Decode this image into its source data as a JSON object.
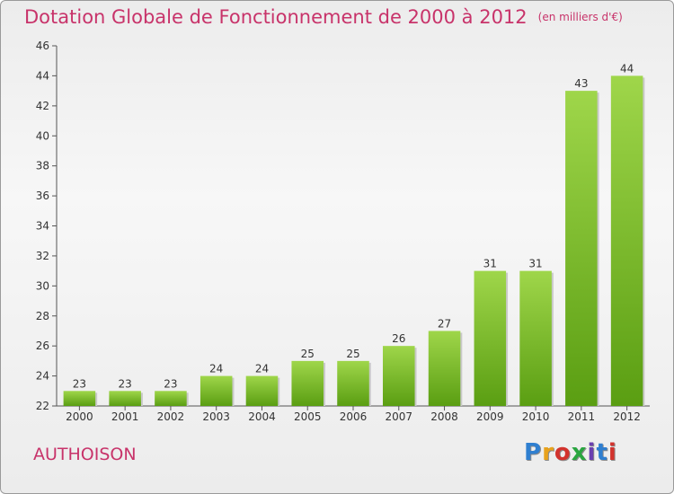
{
  "title": "Dotation Globale de Fonctionnement de 2000 à 2012",
  "subtitle": "(en milliers d'€)",
  "commune": "AUTHOISON",
  "logo": {
    "letters": [
      "P",
      "r",
      "o",
      "x",
      "i",
      "t",
      "i"
    ],
    "colors": [
      "#2f7fd0",
      "#e8a21c",
      "#d2332d",
      "#2aa640",
      "#6a3fb0",
      "#2f7fd0",
      "#d2332d"
    ]
  },
  "colors": {
    "title": "#c8336a",
    "bar_top": "#9fd64a",
    "bar_bottom": "#5a9e12",
    "axis": "#555555"
  },
  "chart_data": {
    "type": "bar",
    "title": "Dotation Globale de Fonctionnement de 2000 à 2012",
    "subtitle": "(en milliers d'€)",
    "categories": [
      "2000",
      "2001",
      "2002",
      "2003",
      "2004",
      "2005",
      "2006",
      "2007",
      "2008",
      "2009",
      "2010",
      "2011",
      "2012"
    ],
    "values": [
      23,
      23,
      23,
      24,
      24,
      25,
      25,
      26,
      27,
      31,
      31,
      43,
      44
    ],
    "ylim": [
      22,
      46
    ],
    "yticks": [
      22,
      24,
      26,
      28,
      30,
      32,
      34,
      36,
      38,
      40,
      42,
      44,
      46
    ],
    "xlabel": "",
    "ylabel": "",
    "grid": false,
    "data_labels": true
  }
}
